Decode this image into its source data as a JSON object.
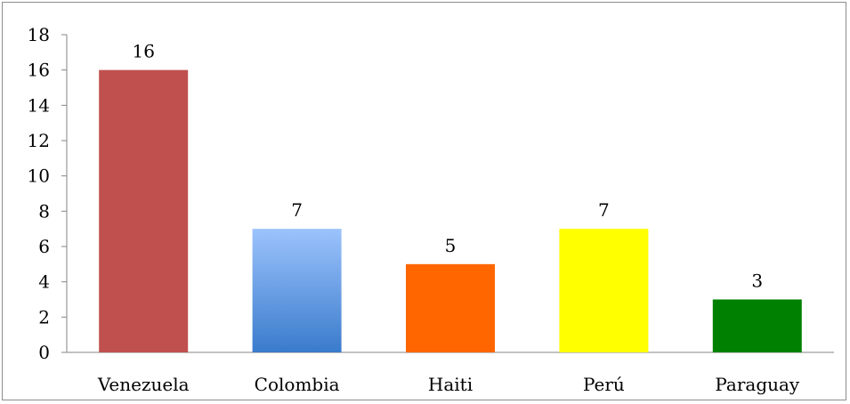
{
  "chart_data": {
    "type": "bar",
    "categories": [
      "Venezuela",
      "Colombia",
      "Haiti",
      "Perú",
      "Paraguay"
    ],
    "values": [
      16,
      7,
      5,
      7,
      3
    ],
    "data_labels": [
      "16",
      "7",
      "5",
      "7",
      "3"
    ],
    "bar_colors": [
      {
        "top": "#c0504d",
        "bottom": "#c0504d"
      },
      {
        "top": "#9cc3fc",
        "bottom": "#3a7bcc"
      },
      {
        "top": "#ff6600",
        "bottom": "#ff6600"
      },
      {
        "top": "#ffff00",
        "bottom": "#ffff00"
      },
      {
        "top": "#008000",
        "bottom": "#008000"
      }
    ],
    "ylim": [
      0,
      18
    ],
    "yticks": [
      "0",
      "2",
      "4",
      "6",
      "8",
      "10",
      "12",
      "14",
      "16",
      "18"
    ],
    "title": "",
    "xlabel": "",
    "ylabel": "",
    "grid": false,
    "legend": "none"
  }
}
